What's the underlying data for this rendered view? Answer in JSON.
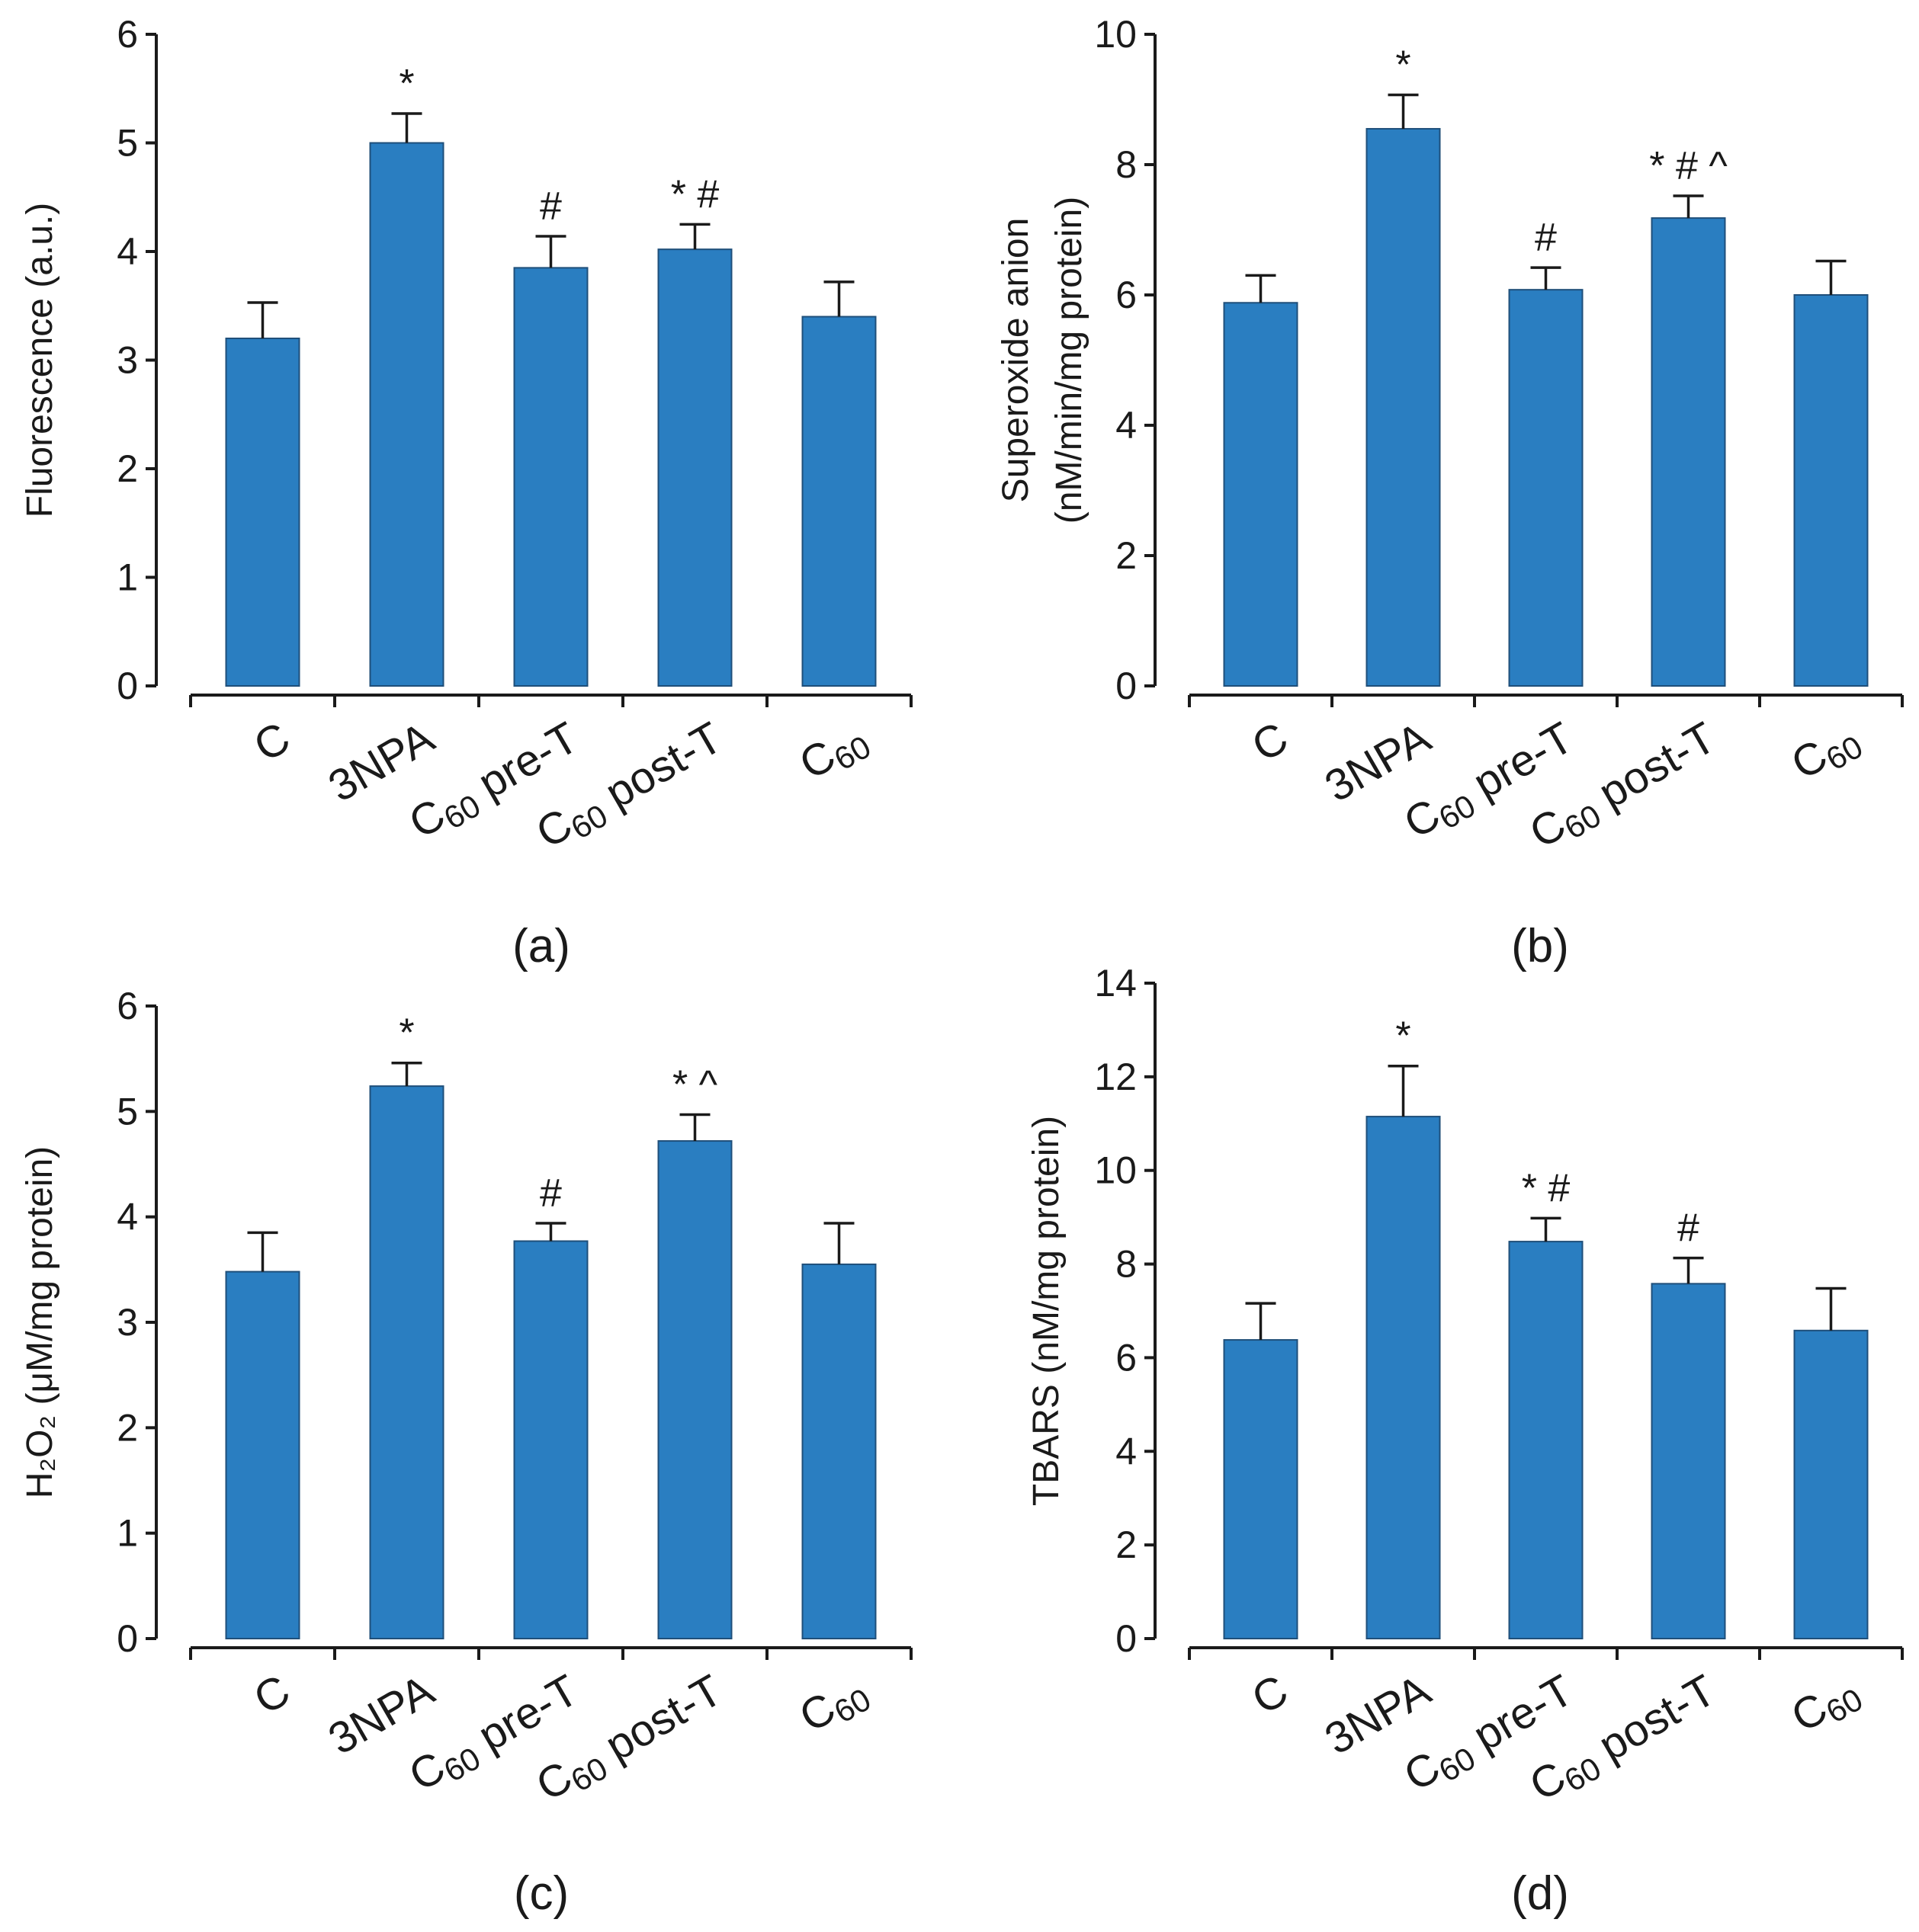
{
  "chart_data": [
    {
      "panel": "(a)",
      "type": "bar",
      "ylabel": [
        "Fluorescence (a.u.)"
      ],
      "ylim": [
        0,
        6
      ],
      "yticks": [
        "0",
        "1",
        "2",
        "3",
        "4",
        "5",
        "6"
      ],
      "categories": [
        {
          "main": "C",
          "sub": "",
          "tail": ""
        },
        {
          "main": "3NPA",
          "sub": "",
          "tail": ""
        },
        {
          "main": "C",
          "sub": "60",
          "tail": " pre-T"
        },
        {
          "main": "C",
          "sub": "60",
          "tail": " post-T"
        },
        {
          "main": "C",
          "sub": "60",
          "tail": ""
        }
      ],
      "values": [
        3.2,
        5.0,
        3.85,
        4.02,
        3.4
      ],
      "errors": [
        0.33,
        0.27,
        0.29,
        0.23,
        0.32
      ],
      "annotations": [
        "",
        "*",
        "#",
        "* #",
        ""
      ]
    },
    {
      "panel": "(b)",
      "type": "bar",
      "ylabel": [
        "Superoxide anion",
        "(nM/min/mg protein)"
      ],
      "ylim": [
        0,
        10
      ],
      "yticks": [
        "0",
        "2",
        "4",
        "6",
        "8",
        "10"
      ],
      "categories": [
        {
          "main": "C",
          "sub": "",
          "tail": ""
        },
        {
          "main": "3NPA",
          "sub": "",
          "tail": ""
        },
        {
          "main": "C",
          "sub": "60",
          "tail": " pre-T"
        },
        {
          "main": "C",
          "sub": "60",
          "tail": " post-T"
        },
        {
          "main": "C",
          "sub": "60",
          "tail": ""
        }
      ],
      "values": [
        5.88,
        8.55,
        6.08,
        7.18,
        6.0
      ],
      "errors": [
        0.42,
        0.52,
        0.34,
        0.34,
        0.52
      ],
      "annotations": [
        "",
        "*",
        "#",
        "* # ^",
        ""
      ]
    },
    {
      "panel": "(c)",
      "type": "bar",
      "ylabel": [
        "H₂O₂ (μM/mg protein)"
      ],
      "ylim": [
        0,
        6
      ],
      "yticks": [
        "0",
        "1",
        "2",
        "3",
        "4",
        "5",
        "6"
      ],
      "categories": [
        {
          "main": "C",
          "sub": "",
          "tail": ""
        },
        {
          "main": "3NPA",
          "sub": "",
          "tail": ""
        },
        {
          "main": "C",
          "sub": "60",
          "tail": " pre-T"
        },
        {
          "main": "C",
          "sub": "60",
          "tail": " post-T"
        },
        {
          "main": "C",
          "sub": "60",
          "tail": ""
        }
      ],
      "values": [
        3.48,
        5.24,
        3.77,
        4.72,
        3.55
      ],
      "errors": [
        0.37,
        0.22,
        0.17,
        0.25,
        0.39
      ],
      "annotations": [
        "",
        "*",
        "#",
        "* ^",
        ""
      ]
    },
    {
      "panel": "(d)",
      "type": "bar",
      "ylabel": [
        "TBARS (nM/mg protein)"
      ],
      "ylim": [
        0,
        14
      ],
      "yticks": [
        "0",
        "2",
        "4",
        "6",
        "8",
        "10",
        "12",
        "14"
      ],
      "categories": [
        {
          "main": "C",
          "sub": "",
          "tail": ""
        },
        {
          "main": "3NPA",
          "sub": "",
          "tail": ""
        },
        {
          "main": "C",
          "sub": "60",
          "tail": " pre-T"
        },
        {
          "main": "C",
          "sub": "60",
          "tail": " post-T"
        },
        {
          "main": "C",
          "sub": "60",
          "tail": ""
        }
      ],
      "values": [
        6.38,
        11.15,
        8.48,
        7.58,
        6.58
      ],
      "errors": [
        0.78,
        1.08,
        0.5,
        0.55,
        0.9
      ],
      "annotations": [
        "",
        "*",
        "* #",
        "#",
        ""
      ]
    }
  ]
}
